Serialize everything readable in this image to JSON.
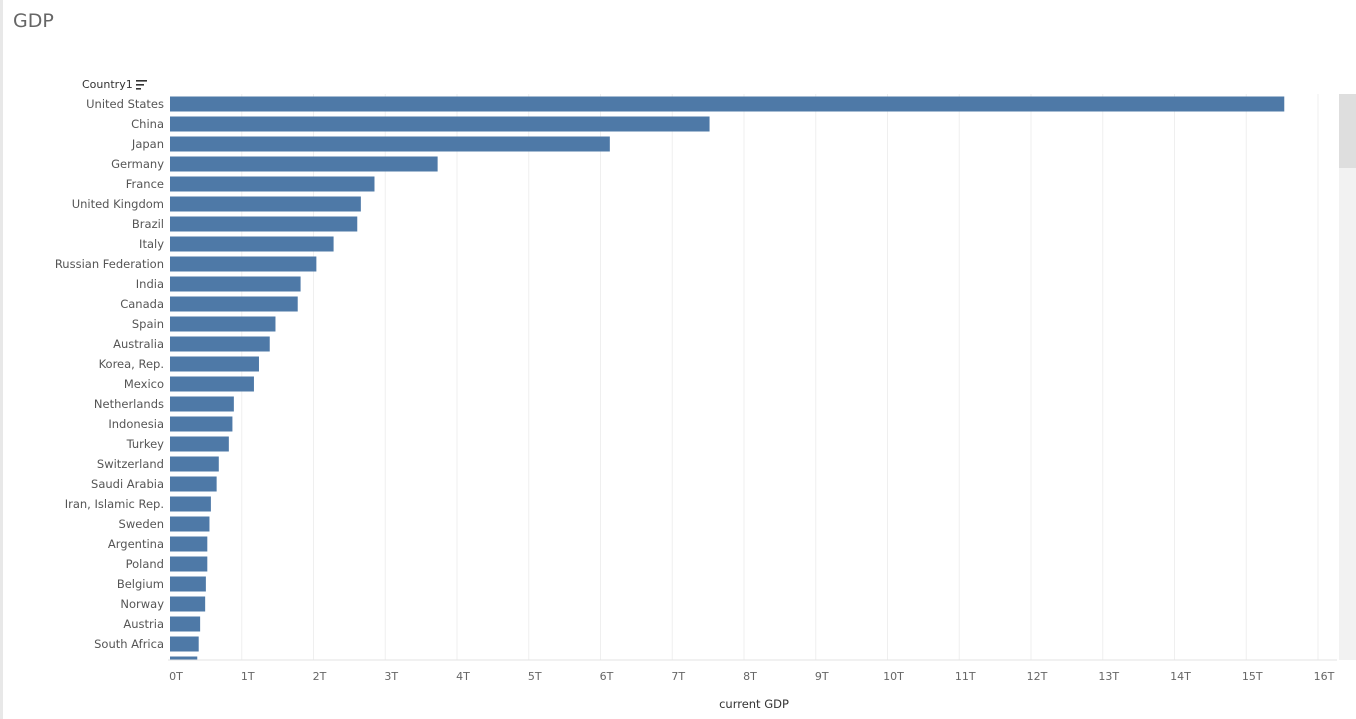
{
  "title": "GDP",
  "field_label": "Country1",
  "chart_data": {
    "type": "bar",
    "orientation": "horizontal",
    "xlabel": "current GDP",
    "ylabel": "Country1",
    "xlim": [
      0,
      16
    ],
    "x_ticks": [
      "0T",
      "1T",
      "2T",
      "3T",
      "4T",
      "5T",
      "6T",
      "7T",
      "8T",
      "9T",
      "10T",
      "11T",
      "12T",
      "13T",
      "14T",
      "15T",
      "16T"
    ],
    "grid": "vertical",
    "bar_color": "#4e79a7",
    "categories": [
      "United States",
      "China",
      "Japan",
      "Germany",
      "France",
      "United Kingdom",
      "Brazil",
      "Italy",
      "Russian Federation",
      "India",
      "Canada",
      "Spain",
      "Australia",
      "Korea, Rep.",
      "Mexico",
      "Netherlands",
      "Indonesia",
      "Turkey",
      "Switzerland",
      "Saudi Arabia",
      "Iran, Islamic Rep.",
      "Sweden",
      "Argentina",
      "Poland",
      "Belgium",
      "Norway",
      "Austria",
      "South Africa"
    ],
    "values": [
      15.53,
      7.52,
      6.13,
      3.73,
      2.85,
      2.66,
      2.61,
      2.28,
      2.04,
      1.82,
      1.78,
      1.47,
      1.39,
      1.24,
      1.17,
      0.89,
      0.87,
      0.82,
      0.68,
      0.65,
      0.57,
      0.55,
      0.52,
      0.52,
      0.5,
      0.49,
      0.42,
      0.4
    ],
    "partial_bar_value": 0.38
  }
}
